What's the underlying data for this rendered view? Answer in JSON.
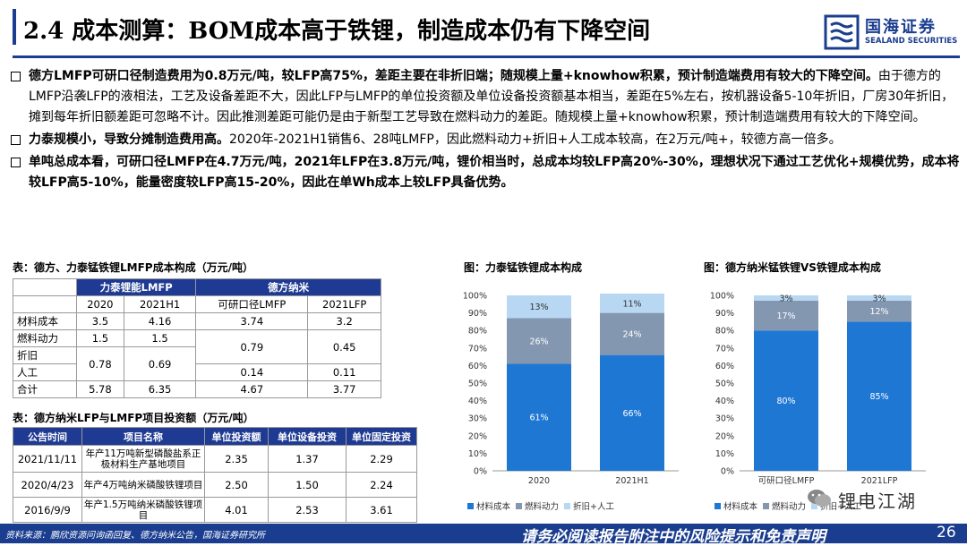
{
  "header": {
    "title": "2.4 成本测算：BOM成本高于铁锂，制造成本仍有下降空间",
    "logo_cn": "国海证券",
    "logo_en": "SEALAND SECURITIES"
  },
  "bullets": [
    {
      "bold": "德方LMFP可研口径制造费用为0.8万元/吨，较LFP高75%，差距主要在非折旧端；随规模上量+knowhow积累，预计制造端费用有较大的下降空间。",
      "normal": "由于德方的LMFP沿袭LFP的液相法，工艺及设备差距不大，因此LFP与LMFP的单位投资额及单位设备投资额基本相当，差距在5%左右，按机器设备5-10年折旧，厂房30年折旧，摊到每年折旧额差距可忽略不计。因此推测差距可能仍是由于新型工艺导致在燃料动力的差距。随规模上量+knowhow积累，预计制造端费用有较大的下降空间。"
    },
    {
      "bold": "力泰规模小，导致分摊制造费用高。",
      "normal": "2020年-2021H1销售6、28吨LMFP，因此燃料动力+折旧+人工成本较高，在2万元/吨+，较德方高一倍多。"
    },
    {
      "bold": "单吨总成本看，可研口径LMFP在4.7万元/吨，2021年LFP在3.8万元/吨，锂价相当时，总成本均较LFP高20%-30%，理想状况下通过工艺优化+规模优势，成本将较LFP高5-10%，能量密度较LFP高15-20%，因此在单Wh成本上较LFP具备优势。",
      "normal": ""
    }
  ],
  "table1": {
    "title": "表：德方、力泰锰铁锂LMFP成本构成（万元/吨）",
    "group_a": "力泰锂能LMFP",
    "group_b": "德方纳米",
    "cols": [
      "2020",
      "2021H1",
      "可研口径LMFP",
      "2021LFP"
    ],
    "rows": [
      {
        "label": "材料成本",
        "v": [
          "3.5",
          "4.16",
          "3.74",
          "3.2"
        ]
      },
      {
        "label": "燃料动力",
        "v": [
          "1.5",
          "1.5",
          "0.79",
          "0.45"
        ]
      },
      {
        "label": "折旧",
        "v": [
          "0.78",
          "0.69",
          "",
          ""
        ]
      },
      {
        "label": "人工",
        "v": [
          "",
          "",
          "0.14",
          "0.11"
        ]
      },
      {
        "label": "合计",
        "v": [
          "5.78",
          "6.35",
          "4.67",
          "3.77"
        ]
      }
    ]
  },
  "table2": {
    "title": "表：德方纳米LFP与LMFP项目投资额（万元/吨）",
    "headers": [
      "公告时间",
      "项目名称",
      "单位投资额",
      "单位设备投资",
      "单位固定投资"
    ],
    "rows": [
      {
        "date": "2021/11/11",
        "name": "年产11万吨新型磷酸盐系正极材料生产基地项目",
        "a": "2.35",
        "b": "1.37",
        "c": "2.29"
      },
      {
        "date": "2020/4/23",
        "name": "年产4万吨纳米磷酸铁锂项目",
        "a": "2.50",
        "b": "1.50",
        "c": "2.24"
      },
      {
        "date": "2016/9/9",
        "name": "年产1.5万吨纳米磷酸铁锂项目",
        "a": "4.01",
        "b": "2.53",
        "c": "3.61"
      }
    ]
  },
  "chart_data": [
    {
      "type": "bar",
      "stacked": true,
      "title": "图：力泰锰铁锂成本构成",
      "categories": [
        "2020",
        "2021H1"
      ],
      "yticks": [
        "0%",
        "10%",
        "20%",
        "30%",
        "40%",
        "50%",
        "60%",
        "70%",
        "80%",
        "90%",
        "100%"
      ],
      "ylim": [
        0,
        100
      ],
      "series": [
        {
          "name": "材料成本",
          "values": [
            61,
            66
          ],
          "labels": [
            "61%",
            "66%"
          ],
          "color": "#1f77d4"
        },
        {
          "name": "燃料动力",
          "values": [
            26,
            24
          ],
          "labels": [
            "26%",
            "24%"
          ],
          "color": "#8397b0"
        },
        {
          "name": "折旧+人工",
          "values": [
            13,
            11
          ],
          "labels": [
            "13%",
            "11%"
          ],
          "color": "#b7d7f2"
        }
      ],
      "legend": "bottom"
    },
    {
      "type": "bar",
      "stacked": true,
      "title": "图：德方纳米锰铁锂VS铁锂成本构成",
      "categories": [
        "可研口径LMFP",
        "2021LFP"
      ],
      "yticks": [
        "0%",
        "10%",
        "20%",
        "30%",
        "40%",
        "50%",
        "60%",
        "70%",
        "80%",
        "90%",
        "100%"
      ],
      "ylim": [
        0,
        100
      ],
      "series": [
        {
          "name": "材料成本",
          "values": [
            80,
            85
          ],
          "labels": [
            "80%",
            "85%"
          ],
          "color": "#1f77d4"
        },
        {
          "name": "燃料动力",
          "values": [
            17,
            12
          ],
          "labels": [
            "17%",
            "12%"
          ],
          "color": "#8397b0"
        },
        {
          "name": "折旧+人工",
          "values": [
            3,
            3
          ],
          "labels": [
            "3%",
            "3%"
          ],
          "color": "#b7d7f2"
        }
      ],
      "legend": "bottom"
    }
  ],
  "footer": {
    "source": "资料来源：鹏欣资源问询函回复、德方纳米公告，国海证券研究所",
    "disclaimer": "请务必阅读报告附注中的风险提示和免责声明",
    "page": "26"
  },
  "watermark": "锂电江湖",
  "colors": {
    "brand": "#1a3d8f",
    "header_fill": "#1f3a93"
  }
}
